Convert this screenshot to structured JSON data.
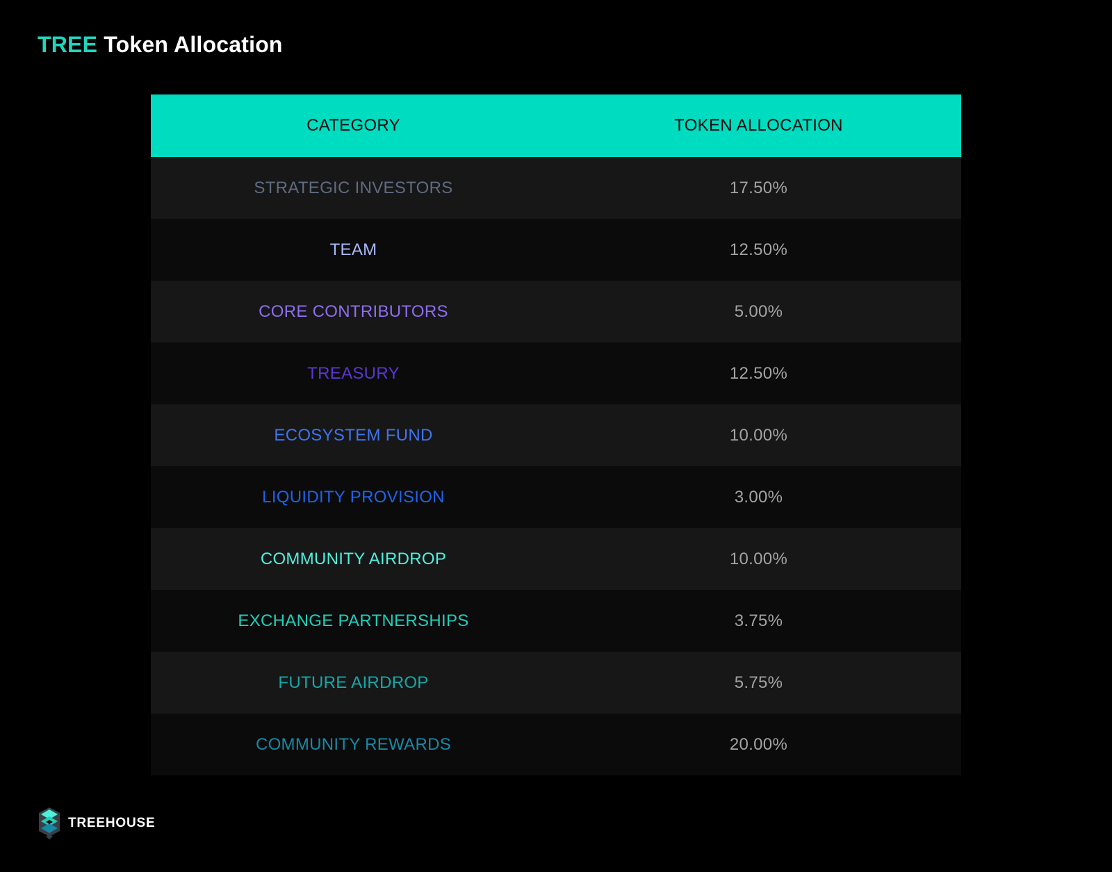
{
  "title": {
    "accent": "TREE",
    "rest": "Token Allocation"
  },
  "table": {
    "headers": [
      "CATEGORY",
      "TOKEN ALLOCATION"
    ],
    "header_bg": "#00dcc0"
  },
  "chart_data": {
    "type": "table",
    "columns": [
      "CATEGORY",
      "TOKEN ALLOCATION"
    ],
    "rows": [
      {
        "category": "STRATEGIC INVESTORS",
        "allocation": "17.50%",
        "color": "#5f6b80"
      },
      {
        "category": "TEAM",
        "allocation": "12.50%",
        "color": "#a7b7f7"
      },
      {
        "category": "CORE CONTRIBUTORS",
        "allocation": "5.00%",
        "color": "#8f6ef2"
      },
      {
        "category": "TREASURY",
        "allocation": "12.50%",
        "color": "#5a37cf"
      },
      {
        "category": "ECOSYSTEM FUND",
        "allocation": "10.00%",
        "color": "#3f74f0"
      },
      {
        "category": "LIQUIDITY PROVISION",
        "allocation": "3.00%",
        "color": "#1e63e8"
      },
      {
        "category": "COMMUNITY AIRDROP",
        "allocation": "10.00%",
        "color": "#4ff0da"
      },
      {
        "category": "EXCHANGE PARTNERSHIPS",
        "allocation": "3.75%",
        "color": "#1fcfbb"
      },
      {
        "category": "FUTURE AIRDROP",
        "allocation": "5.75%",
        "color": "#16a8a6"
      },
      {
        "category": "COMMUNITY REWARDS",
        "allocation": "20.00%",
        "color": "#1789a5"
      }
    ]
  },
  "brand": {
    "icon": "treehouse-logo-icon",
    "name": "TREEHOUSE"
  }
}
